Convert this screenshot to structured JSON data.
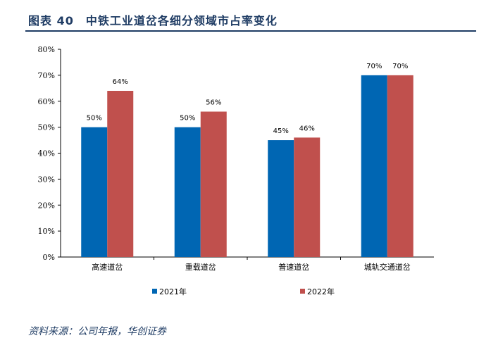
{
  "title": "图表 40　中铁工业道岔各细分领域市占率变化",
  "source": "资料来源：公司年报，华创证券",
  "chart_data": {
    "type": "bar",
    "categories": [
      "高速道岔",
      "重载道岔",
      "普速道岔",
      "城轨交通道岔"
    ],
    "series": [
      {
        "name": "2021年",
        "values": [
          50,
          50,
          45,
          70
        ],
        "labels": [
          "50%",
          "50%",
          "45%",
          "70%"
        ],
        "color": "#0066b3"
      },
      {
        "name": "2022年",
        "values": [
          64,
          56,
          46,
          70
        ],
        "labels": [
          "64%",
          "56%",
          "46%",
          "70%"
        ],
        "color": "#c0504d"
      }
    ],
    "ylim": [
      0,
      80
    ],
    "yticks": [
      "0%",
      "10%",
      "20%",
      "30%",
      "40%",
      "50%",
      "60%",
      "70%",
      "80%"
    ],
    "legend": "bottom",
    "grid": false
  }
}
